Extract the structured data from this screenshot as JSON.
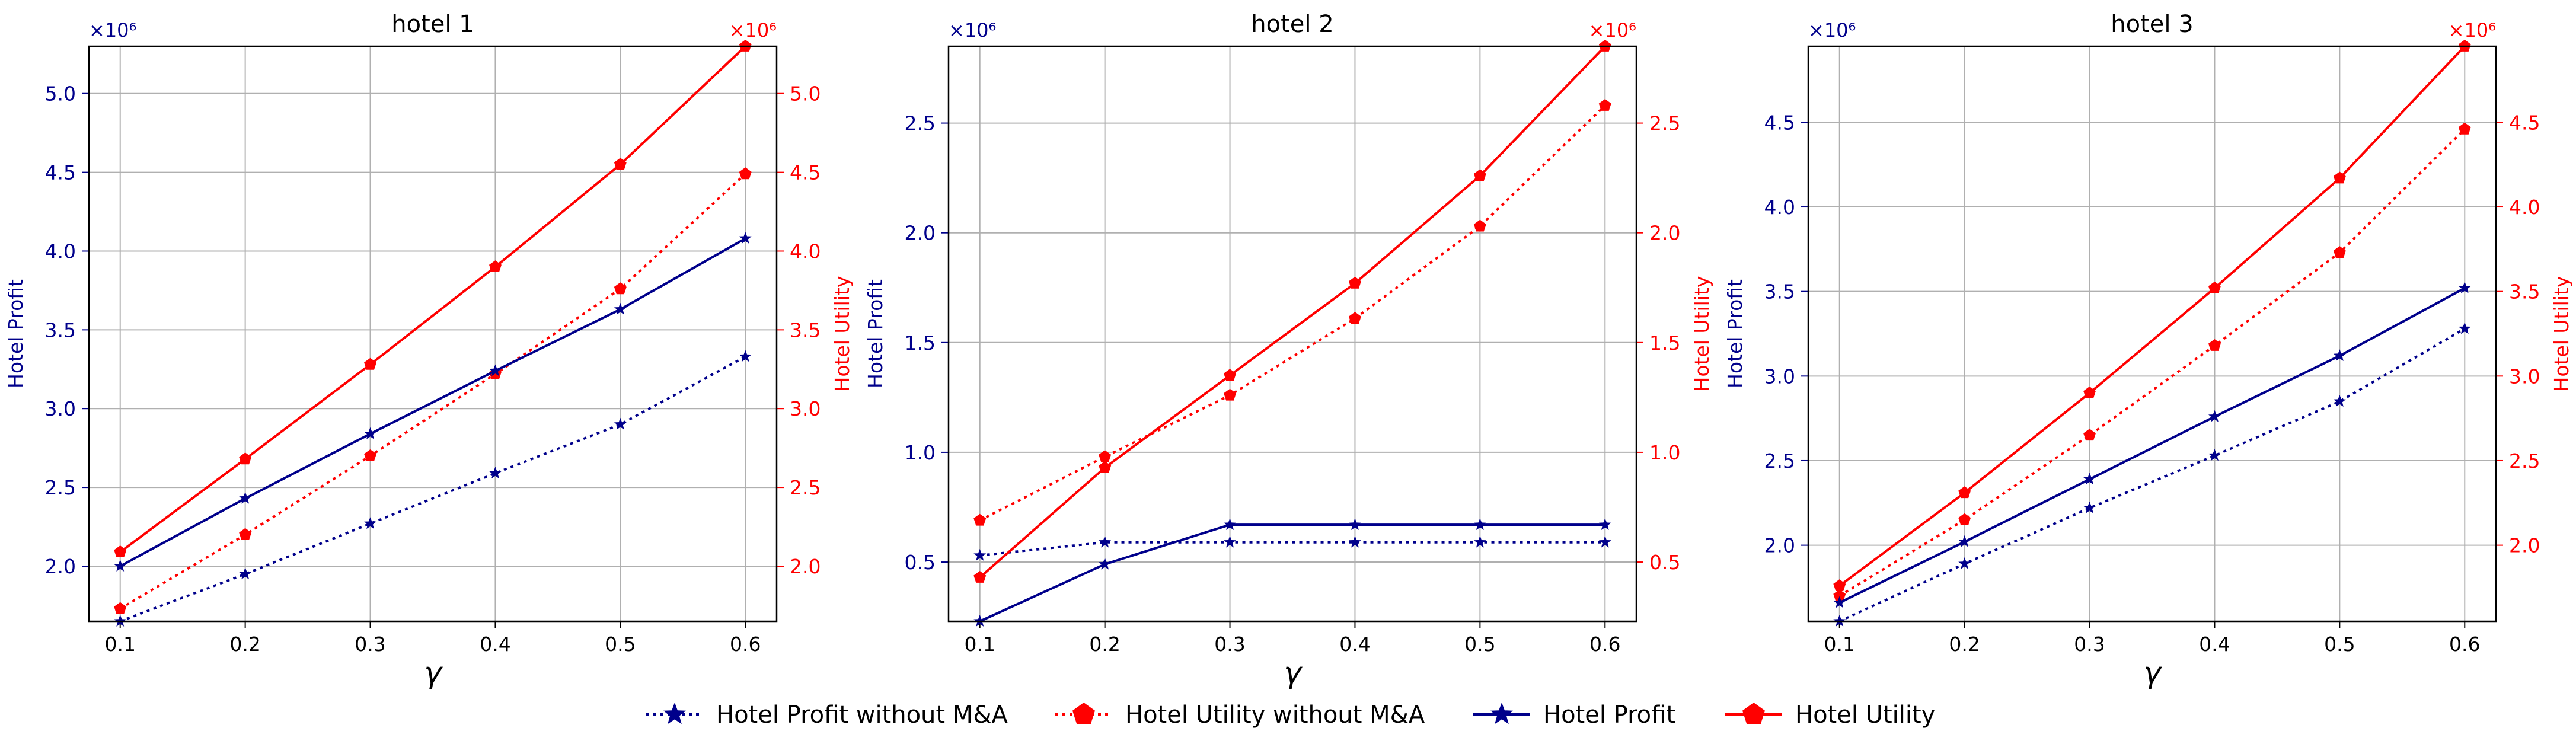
{
  "chart_data": [
    {
      "type": "line",
      "title": "hotel 1",
      "xlabel": "γ",
      "ylabel_left": "Hotel Profit",
      "ylabel_right": "Hotel Utility",
      "multiplier_label": "×10⁶",
      "x": [
        0.1,
        0.2,
        0.3,
        0.4,
        0.5,
        0.6
      ],
      "xticks": [
        "0.1",
        "0.2",
        "0.3",
        "0.4",
        "0.5",
        "0.6"
      ],
      "xlim": [
        0.075,
        0.625
      ],
      "ylim": [
        1.65,
        5.3
      ],
      "yticks": [
        "2.0",
        "2.5",
        "3.0",
        "3.5",
        "4.0",
        "4.5",
        "5.0"
      ],
      "grid": true,
      "series": [
        {
          "name": "Hotel Profit without M&A",
          "axis": "left",
          "values": [
            1.65,
            1.95,
            2.27,
            2.59,
            2.9,
            3.33
          ]
        },
        {
          "name": "Hotel Utility without M&A",
          "axis": "right",
          "values": [
            1.73,
            2.2,
            2.7,
            3.22,
            3.76,
            4.49
          ]
        },
        {
          "name": "Hotel Profit",
          "axis": "left",
          "values": [
            2.0,
            2.43,
            2.84,
            3.24,
            3.63,
            4.08
          ]
        },
        {
          "name": "Hotel Utility",
          "axis": "right",
          "values": [
            2.09,
            2.68,
            3.28,
            3.9,
            4.55,
            5.3
          ]
        }
      ]
    },
    {
      "type": "line",
      "title": "hotel 2",
      "xlabel": "γ",
      "ylabel_left": "Hotel Profit",
      "ylabel_right": "Hotel Utility",
      "multiplier_label": "×10⁶",
      "x": [
        0.1,
        0.2,
        0.3,
        0.4,
        0.5,
        0.6
      ],
      "xticks": [
        "0.1",
        "0.2",
        "0.3",
        "0.4",
        "0.5",
        "0.6"
      ],
      "xlim": [
        0.075,
        0.625
      ],
      "ylim": [
        0.23,
        2.85
      ],
      "yticks": [
        "0.5",
        "1.0",
        "1.5",
        "2.0",
        "2.5"
      ],
      "grid": true,
      "series": [
        {
          "name": "Hotel Profit without M&A",
          "axis": "left",
          "values": [
            0.53,
            0.59,
            0.59,
            0.59,
            0.59,
            0.59
          ]
        },
        {
          "name": "Hotel Utility without M&A",
          "axis": "right",
          "values": [
            0.69,
            0.98,
            1.26,
            1.61,
            2.03,
            2.58
          ]
        },
        {
          "name": "Hotel Profit",
          "axis": "left",
          "values": [
            0.23,
            0.49,
            0.67,
            0.67,
            0.67,
            0.67
          ]
        },
        {
          "name": "Hotel Utility",
          "axis": "right",
          "values": [
            0.43,
            0.93,
            1.35,
            1.77,
            2.26,
            2.85
          ]
        }
      ]
    },
    {
      "type": "line",
      "title": "hotel 3",
      "xlabel": "γ",
      "ylabel_left": "Hotel Profit",
      "ylabel_right": "Hotel Utility",
      "multiplier_label": "×10⁶",
      "x": [
        0.1,
        0.2,
        0.3,
        0.4,
        0.5,
        0.6
      ],
      "xticks": [
        "0.1",
        "0.2",
        "0.3",
        "0.4",
        "0.5",
        "0.6"
      ],
      "xlim": [
        0.075,
        0.625
      ],
      "ylim": [
        1.55,
        4.95
      ],
      "yticks": [
        "2.0",
        "2.5",
        "3.0",
        "3.5",
        "4.0",
        "4.5"
      ],
      "grid": true,
      "series": [
        {
          "name": "Hotel Profit without M&A",
          "axis": "left",
          "values": [
            1.55,
            1.89,
            2.22,
            2.53,
            2.85,
            3.28
          ]
        },
        {
          "name": "Hotel Utility without M&A",
          "axis": "right",
          "values": [
            1.7,
            2.15,
            2.65,
            3.18,
            3.73,
            4.46
          ]
        },
        {
          "name": "Hotel Profit",
          "axis": "left",
          "values": [
            1.66,
            2.02,
            2.39,
            2.76,
            3.12,
            3.52
          ]
        },
        {
          "name": "Hotel Utility",
          "axis": "right",
          "values": [
            1.76,
            2.31,
            2.9,
            3.52,
            4.17,
            4.95
          ]
        }
      ]
    }
  ],
  "legend": {
    "placement": "bottom-center",
    "entries": [
      {
        "label": "Hotel Profit without M&A",
        "color": "#00008b",
        "dash": "dotted",
        "marker": "star"
      },
      {
        "label": "Hotel Utility without M&A",
        "color": "#ff0000",
        "dash": "dotted",
        "marker": "pentagon"
      },
      {
        "label": "Hotel Profit",
        "color": "#00008b",
        "dash": "solid",
        "marker": "star"
      },
      {
        "label": "Hotel Utility",
        "color": "#ff0000",
        "dash": "solid",
        "marker": "pentagon"
      }
    ]
  },
  "colors": {
    "profit": "#00008b",
    "utility": "#ff0000",
    "grid": "#b0b0b0",
    "axis": "#000000"
  }
}
